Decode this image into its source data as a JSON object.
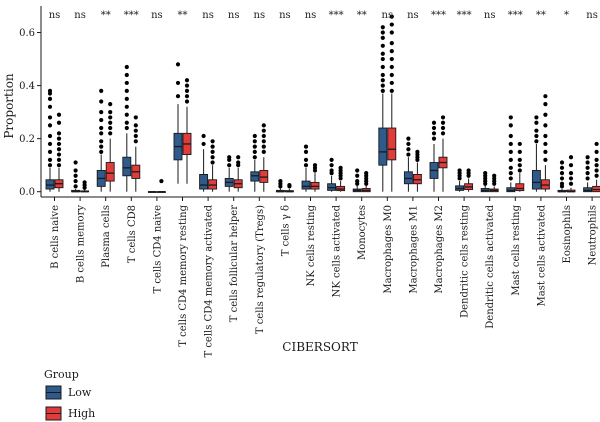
{
  "chart_data": {
    "type": "box",
    "xlabel": "CIBERSORT",
    "ylabel": "Proportion",
    "ylim": [
      -0.02,
      0.7
    ],
    "yticks": [
      0.0,
      0.2,
      0.4,
      0.6
    ],
    "ytick_labels": [
      "0.0",
      "0.2",
      "0.4",
      "0.6"
    ],
    "legend": {
      "title": "Group",
      "position": "bottom-left",
      "entries": [
        {
          "name": "Low",
          "color": "#2e5a8c"
        },
        {
          "name": "High",
          "color": "#e23b3b"
        }
      ]
    },
    "categories": [
      "B cells naive",
      "B cells memory",
      "Plasma cells",
      "T cells CD8",
      "T cells CD4 naive",
      "T cells CD4 memory resting",
      "T cells CD4 memory activated",
      "T cells follicular helper",
      "T cells regulatory (Tregs)",
      "T cells γ δ",
      "NK cells resting",
      "NK cells activated",
      "Monocytes",
      "Macrophages M0",
      "Macrophages M1",
      "Macrophages M2",
      "Dendritic cells resting",
      "Dendritic cells activated",
      "Mast cells resting",
      "Mast cells activated",
      "Eosinophils",
      "Neutrophils"
    ],
    "significance": [
      "ns",
      "ns",
      "**",
      "***",
      "ns",
      "**",
      "ns",
      "ns",
      "ns",
      "ns",
      "ns",
      "***",
      "**",
      "ns",
      "ns",
      "***",
      "***",
      "ns",
      "***",
      "**",
      "*",
      "ns"
    ],
    "series": [
      {
        "name": "Low",
        "color": "#2e5a8c",
        "boxes": [
          {
            "min": 0.0,
            "q1": 0.01,
            "median": 0.025,
            "q3": 0.045,
            "max": 0.09,
            "outliers": [
              0.1,
              0.12,
              0.15,
              0.18,
              0.21,
              0.25,
              0.28,
              0.32,
              0.35,
              0.37,
              0.38
            ]
          },
          {
            "min": 0.0,
            "q1": 0.0,
            "median": 0.0,
            "q3": 0.005,
            "max": 0.01,
            "outliers": [
              0.02,
              0.04,
              0.06,
              0.08,
              0.11
            ]
          },
          {
            "min": 0.0,
            "q1": 0.02,
            "median": 0.05,
            "q3": 0.08,
            "max": 0.14,
            "outliers": [
              0.15,
              0.17,
              0.19,
              0.22,
              0.24,
              0.27,
              0.3,
              0.34,
              0.38
            ]
          },
          {
            "min": 0.0,
            "q1": 0.06,
            "median": 0.09,
            "q3": 0.13,
            "max": 0.22,
            "outliers": [
              0.24,
              0.26,
              0.29,
              0.32,
              0.35,
              0.38,
              0.41,
              0.44,
              0.47
            ]
          },
          {
            "min": 0.0,
            "q1": 0.0,
            "median": 0.0,
            "q3": 0.0,
            "max": 0.0,
            "outliers": []
          },
          {
            "min": 0.03,
            "q1": 0.12,
            "median": 0.17,
            "q3": 0.22,
            "max": 0.33,
            "outliers": [
              0.36,
              0.41,
              0.48
            ]
          },
          {
            "min": 0.0,
            "q1": 0.01,
            "median": 0.025,
            "q3": 0.065,
            "max": 0.16,
            "outliers": [
              0.18,
              0.21
            ]
          },
          {
            "min": 0.0,
            "q1": 0.02,
            "median": 0.035,
            "q3": 0.05,
            "max": 0.09,
            "outliers": [
              0.1,
              0.12,
              0.13
            ]
          },
          {
            "min": 0.0,
            "q1": 0.04,
            "median": 0.06,
            "q3": 0.075,
            "max": 0.12,
            "outliers": [
              0.13,
              0.15,
              0.17,
              0.19,
              0.21
            ]
          },
          {
            "min": 0.0,
            "q1": 0.0,
            "median": 0.0,
            "q3": 0.005,
            "max": 0.012,
            "outliers": [
              0.02,
              0.03,
              0.04
            ]
          },
          {
            "min": 0.0,
            "q1": 0.01,
            "median": 0.02,
            "q3": 0.04,
            "max": 0.09,
            "outliers": [
              0.1,
              0.12,
              0.15,
              0.17
            ]
          },
          {
            "min": 0.0,
            "q1": 0.005,
            "median": 0.015,
            "q3": 0.03,
            "max": 0.06,
            "outliers": [
              0.07,
              0.08,
              0.1,
              0.12
            ]
          },
          {
            "min": 0.0,
            "q1": 0.0,
            "median": 0.005,
            "q3": 0.01,
            "max": 0.025,
            "outliers": [
              0.03,
              0.04,
              0.06,
              0.08
            ]
          },
          {
            "min": 0.0,
            "q1": 0.1,
            "median": 0.15,
            "q3": 0.24,
            "max": 0.37,
            "outliers": [
              0.38,
              0.4,
              0.42,
              0.44,
              0.47,
              0.5,
              0.52,
              0.55,
              0.58,
              0.6,
              0.62
            ]
          },
          {
            "min": 0.0,
            "q1": 0.03,
            "median": 0.05,
            "q3": 0.075,
            "max": 0.13,
            "outliers": [
              0.14,
              0.16,
              0.18,
              0.2
            ]
          },
          {
            "min": 0.0,
            "q1": 0.05,
            "median": 0.08,
            "q3": 0.11,
            "max": 0.18,
            "outliers": [
              0.2,
              0.22,
              0.24,
              0.26
            ]
          },
          {
            "min": 0.0,
            "q1": 0.005,
            "median": 0.012,
            "q3": 0.022,
            "max": 0.04,
            "outliers": [
              0.05,
              0.06,
              0.07,
              0.08
            ]
          },
          {
            "min": 0.0,
            "q1": 0.0,
            "median": 0.005,
            "q3": 0.012,
            "max": 0.025,
            "outliers": [
              0.03,
              0.04,
              0.05,
              0.06,
              0.07
            ]
          },
          {
            "min": 0.0,
            "q1": 0.0,
            "median": 0.005,
            "q3": 0.015,
            "max": 0.035,
            "outliers": [
              0.05,
              0.07,
              0.09,
              0.12,
              0.15,
              0.18,
              0.21,
              0.25,
              0.28
            ]
          },
          {
            "min": 0.0,
            "q1": 0.01,
            "median": 0.035,
            "q3": 0.08,
            "max": 0.18,
            "outliers": [
              0.19,
              0.21,
              0.23,
              0.26,
              0.28
            ]
          },
          {
            "min": 0.0,
            "q1": 0.0,
            "median": 0.0,
            "q3": 0.005,
            "max": 0.01,
            "outliers": [
              0.02,
              0.03,
              0.05,
              0.07,
              0.09,
              0.11
            ]
          },
          {
            "min": 0.0,
            "q1": 0.0,
            "median": 0.005,
            "q3": 0.015,
            "max": 0.035,
            "outliers": [
              0.05,
              0.07,
              0.09,
              0.11,
              0.13
            ]
          }
        ]
      },
      {
        "name": "High",
        "color": "#e23b3b",
        "boxes": [
          {
            "min": 0.0,
            "q1": 0.015,
            "median": 0.03,
            "q3": 0.045,
            "max": 0.09,
            "outliers": [
              0.1,
              0.12,
              0.14,
              0.16,
              0.18,
              0.2,
              0.22,
              0.26,
              0.29
            ]
          },
          {
            "min": 0.0,
            "q1": 0.0,
            "median": 0.0,
            "q3": 0.003,
            "max": 0.008,
            "outliers": [
              0.015,
              0.025,
              0.035
            ]
          },
          {
            "min": 0.0,
            "q1": 0.04,
            "median": 0.07,
            "q3": 0.11,
            "max": 0.2,
            "outliers": [
              0.22,
              0.24,
              0.26,
              0.28,
              0.3,
              0.33
            ]
          },
          {
            "min": 0.0,
            "q1": 0.05,
            "median": 0.075,
            "q3": 0.1,
            "max": 0.17,
            "outliers": [
              0.19,
              0.21,
              0.23,
              0.25,
              0.28
            ]
          },
          {
            "min": 0.0,
            "q1": 0.0,
            "median": 0.0,
            "q3": 0.0,
            "max": 0.0,
            "outliers": [
              0.04
            ]
          },
          {
            "min": 0.03,
            "q1": 0.14,
            "median": 0.18,
            "q3": 0.22,
            "max": 0.32,
            "outliers": [
              0.34,
              0.36,
              0.38,
              0.4,
              0.42
            ]
          },
          {
            "min": 0.0,
            "q1": 0.01,
            "median": 0.025,
            "q3": 0.045,
            "max": 0.1,
            "outliers": [
              0.11,
              0.13,
              0.15,
              0.17,
              0.19
            ]
          },
          {
            "min": 0.0,
            "q1": 0.015,
            "median": 0.03,
            "q3": 0.045,
            "max": 0.09,
            "outliers": [
              0.1,
              0.11,
              0.13
            ]
          },
          {
            "min": 0.0,
            "q1": 0.035,
            "median": 0.055,
            "q3": 0.08,
            "max": 0.13,
            "outliers": [
              0.15,
              0.17,
              0.19,
              0.21,
              0.23,
              0.25
            ]
          },
          {
            "min": 0.0,
            "q1": 0.0,
            "median": 0.0,
            "q3": 0.004,
            "max": 0.01,
            "outliers": [
              0.02,
              0.025
            ]
          },
          {
            "min": 0.0,
            "q1": 0.01,
            "median": 0.02,
            "q3": 0.035,
            "max": 0.07,
            "outliers": [
              0.08,
              0.09,
              0.1
            ]
          },
          {
            "min": 0.0,
            "q1": 0.004,
            "median": 0.01,
            "q3": 0.02,
            "max": 0.04,
            "outliers": [
              0.05,
              0.06,
              0.07,
              0.08,
              0.09
            ]
          },
          {
            "min": 0.0,
            "q1": 0.0,
            "median": 0.005,
            "q3": 0.012,
            "max": 0.025,
            "outliers": [
              0.03,
              0.04,
              0.05,
              0.06,
              0.07
            ]
          },
          {
            "min": 0.0,
            "q1": 0.12,
            "median": 0.16,
            "q3": 0.24,
            "max": 0.37,
            "outliers": [
              0.38,
              0.41,
              0.44,
              0.47,
              0.5,
              0.53,
              0.56,
              0.6,
              0.63,
              0.66
            ]
          },
          {
            "min": 0.0,
            "q1": 0.03,
            "median": 0.045,
            "q3": 0.065,
            "max": 0.11,
            "outliers": [
              0.12,
              0.13,
              0.14,
              0.15
            ]
          },
          {
            "min": 0.0,
            "q1": 0.09,
            "median": 0.11,
            "q3": 0.13,
            "max": 0.2,
            "outliers": [
              0.22,
              0.24,
              0.26,
              0.28
            ]
          },
          {
            "min": 0.0,
            "q1": 0.008,
            "median": 0.018,
            "q3": 0.03,
            "max": 0.05,
            "outliers": [
              0.06,
              0.07,
              0.08
            ]
          },
          {
            "min": 0.0,
            "q1": 0.0,
            "median": 0.005,
            "q3": 0.01,
            "max": 0.02,
            "outliers": [
              0.03,
              0.04,
              0.05,
              0.06
            ]
          },
          {
            "min": 0.0,
            "q1": 0.004,
            "median": 0.012,
            "q3": 0.03,
            "max": 0.07,
            "outliers": [
              0.08,
              0.1,
              0.12,
              0.15,
              0.18
            ]
          },
          {
            "min": 0.0,
            "q1": 0.01,
            "median": 0.025,
            "q3": 0.045,
            "max": 0.1,
            "outliers": [
              0.12,
              0.15,
              0.18,
              0.21,
              0.25,
              0.29,
              0.33,
              0.36
            ]
          },
          {
            "min": 0.0,
            "q1": 0.0,
            "median": 0.0,
            "q3": 0.006,
            "max": 0.015,
            "outliers": [
              0.03,
              0.05,
              0.07,
              0.1,
              0.13
            ]
          },
          {
            "min": 0.0,
            "q1": 0.0,
            "median": 0.008,
            "q3": 0.02,
            "max": 0.045,
            "outliers": [
              0.06,
              0.08,
              0.1,
              0.12,
              0.15,
              0.18
            ]
          }
        ]
      }
    ]
  }
}
